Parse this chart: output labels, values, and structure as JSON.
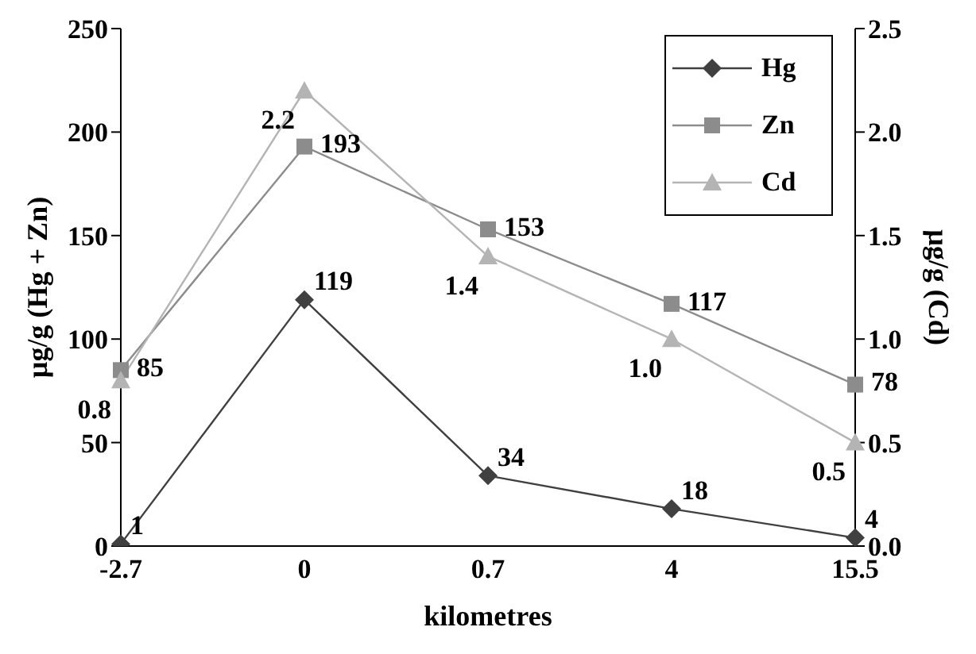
{
  "chart_data": {
    "type": "line",
    "xlabel": "kilometres",
    "ylabel": "µg/g (Hg + Zn)",
    "y2label": "µg/g (Cd)",
    "categories": [
      "-2.7",
      "0",
      "0.7",
      "4",
      "15.5"
    ],
    "series": [
      {
        "name": "Hg",
        "color": "#404040",
        "marker": "diamond",
        "values": [
          1,
          119,
          34,
          18,
          4
        ],
        "value_labels": [
          "1",
          "119",
          "34",
          "18",
          "4"
        ]
      },
      {
        "name": "Zn",
        "color": "#8c8c8c",
        "marker": "square",
        "values": [
          85,
          193,
          153,
          117,
          78
        ],
        "value_labels": [
          "85",
          "193",
          "153",
          "117",
          "78"
        ]
      },
      {
        "name": "Cd",
        "color": "#b4b4b4",
        "marker": "triangle",
        "axis": "y2",
        "values": [
          0.8,
          2.2,
          1.4,
          1.0,
          0.5
        ],
        "value_labels": [
          "0.8",
          "2.2",
          "1.4",
          "1.0",
          "0.5"
        ]
      }
    ],
    "ylim": [
      0,
      250
    ],
    "yticks": [
      0,
      50,
      100,
      150,
      200,
      250
    ],
    "y2lim": [
      0,
      2.5
    ],
    "y2ticks": [
      {
        "value": 0,
        "label": "0.0"
      },
      {
        "value": 0.5,
        "label": "0.5"
      },
      {
        "value": 1,
        "label": "1.0"
      },
      {
        "value": 1.5,
        "label": "1.5"
      },
      {
        "value": 2,
        "label": "2.0"
      },
      {
        "value": 2.5,
        "label": "2.5"
      }
    ],
    "grid": false,
    "legend": "top right"
  }
}
